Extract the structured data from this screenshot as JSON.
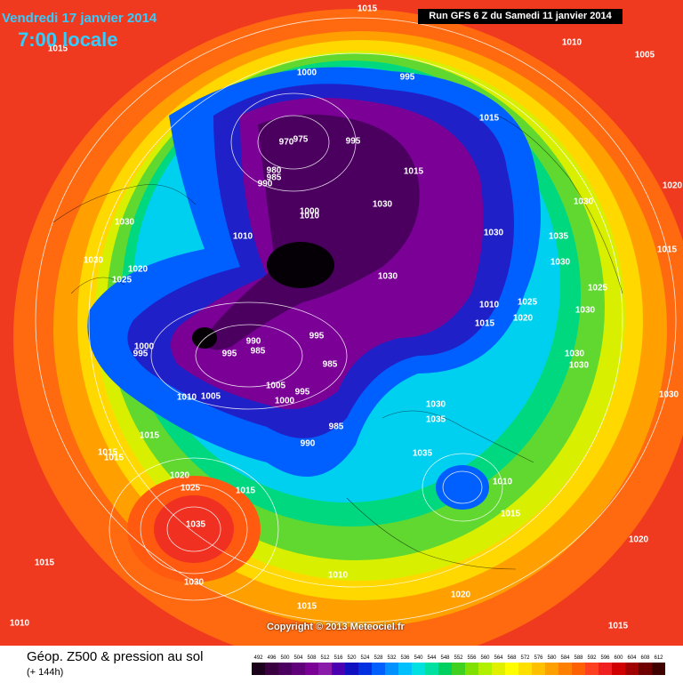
{
  "header": {
    "date": "Vendredi 17 janvier 2014",
    "time": "7:00 locale",
    "run": "Run GFS 6 Z du Samedi 11 janvier 2014"
  },
  "copyright": "Copyright © 2013 Meteociel.fr",
  "footer": {
    "title": "Géop. Z500 & pression au sol",
    "subtitle": "(+ 144h)"
  },
  "isobar_labels": [
    1015,
    1015,
    1010,
    1005,
    1000,
    995,
    975,
    970,
    995,
    1015,
    980,
    985,
    990,
    1015,
    1020,
    1000,
    1010,
    1030,
    1030,
    1030,
    1010,
    1030,
    1035,
    1015,
    1030,
    1020,
    1025,
    1030,
    1030,
    1025,
    1010,
    1025,
    1020,
    1030,
    1015,
    995,
    990,
    985,
    1000,
    995,
    995,
    985,
    1030,
    1030,
    1010,
    1005,
    1005,
    995,
    1000,
    1030,
    1030,
    1035,
    985,
    1015,
    990,
    1035,
    1015,
    1015,
    1020,
    1025,
    1015,
    1010,
    1015,
    1035,
    1015,
    1030,
    1010,
    1020,
    1020,
    1015,
    1010,
    1015
  ],
  "color_scale": {
    "ticks": [
      492,
      496,
      500,
      504,
      508,
      512,
      516,
      520,
      524,
      528,
      532,
      536,
      540,
      544,
      548,
      552,
      556,
      560,
      564,
      568,
      572,
      576,
      580,
      584,
      588,
      592,
      596,
      600,
      604,
      608,
      612
    ],
    "colors": [
      "#1a001a",
      "#3a003f",
      "#4b0060",
      "#60007a",
      "#7a0096",
      "#8a1aa8",
      "#4a00b0",
      "#1010c0",
      "#0030e0",
      "#0060ff",
      "#0090ff",
      "#00c0ff",
      "#00e0e0",
      "#00e0a0",
      "#00d060",
      "#40d020",
      "#80e000",
      "#b0f000",
      "#e0f000",
      "#ffff00",
      "#ffe000",
      "#ffc000",
      "#ffa000",
      "#ff8000",
      "#ff6000",
      "#ff4020",
      "#f02020",
      "#d00000",
      "#a00000",
      "#700000",
      "#400000"
    ]
  }
}
